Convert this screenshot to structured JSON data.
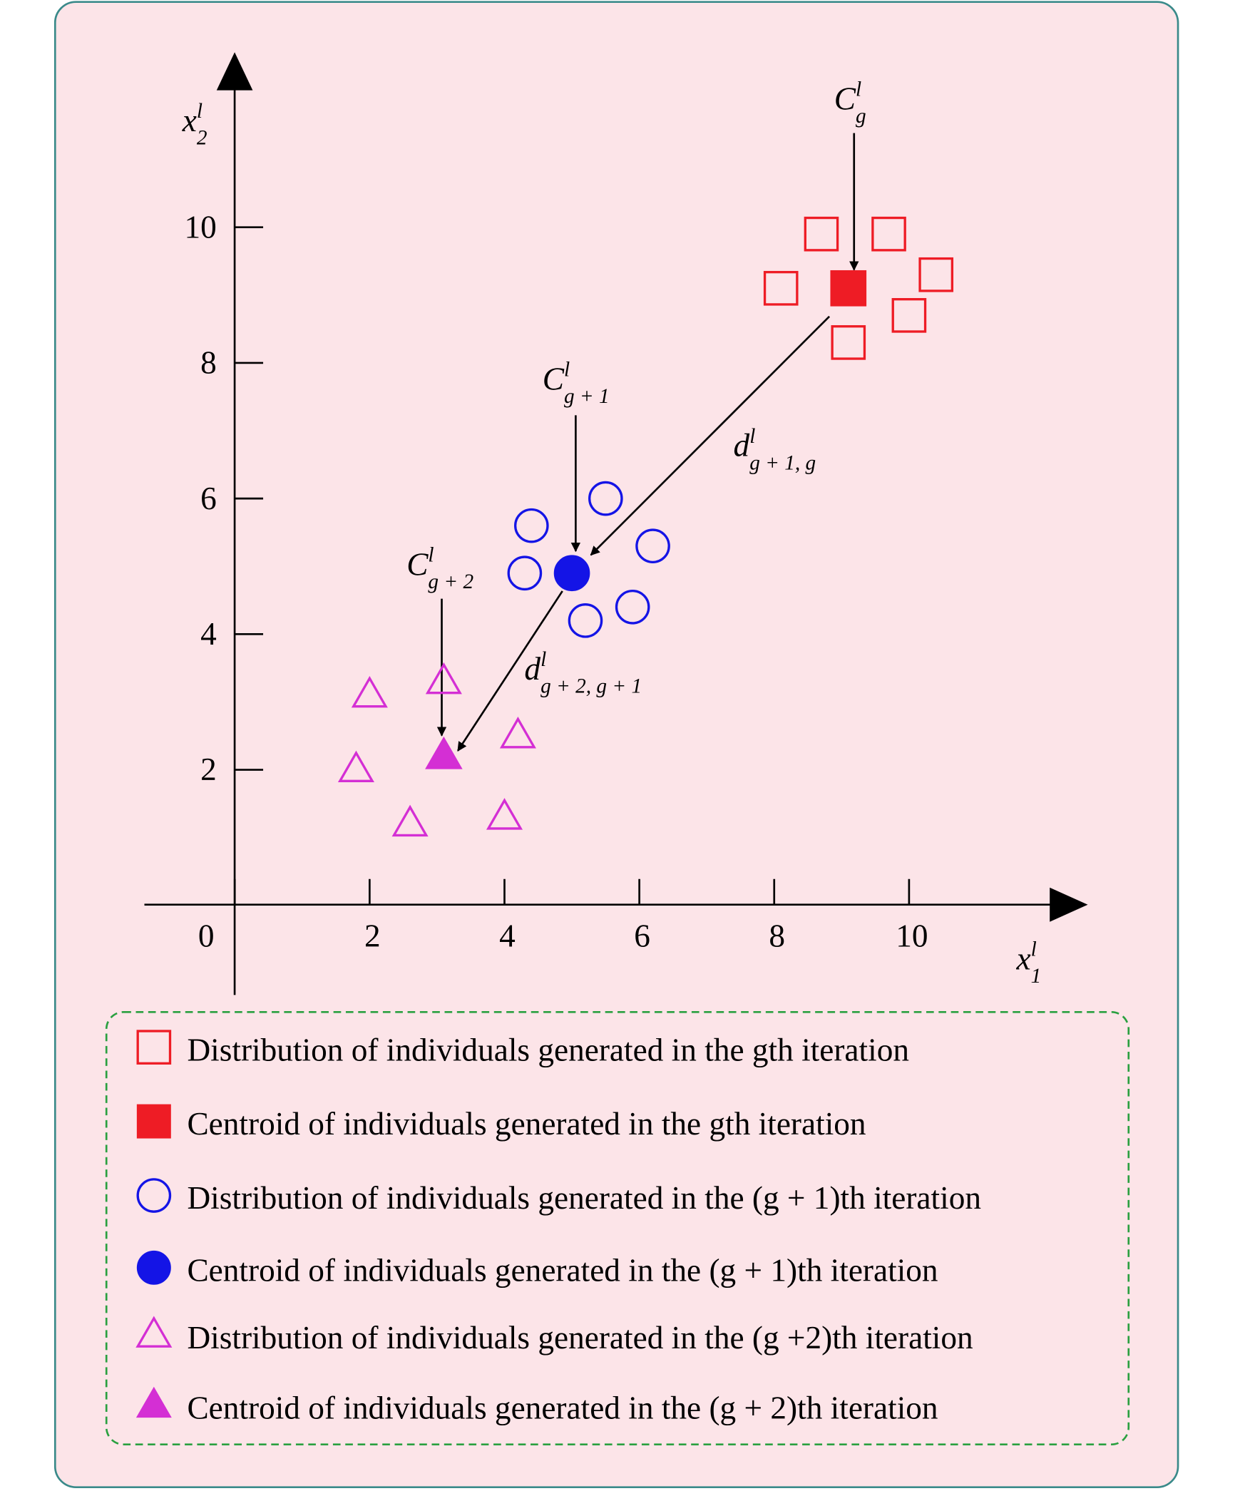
{
  "chart_data": {
    "type": "scatter",
    "xlim": [
      -1.34,
      12.65
    ],
    "ylim": [
      -1.32,
      12.58
    ],
    "xticks": [
      0,
      2,
      4,
      6,
      8,
      10
    ],
    "yticks": [
      2,
      4,
      6,
      8,
      10
    ],
    "x_label": {
      "base": "x",
      "sup": "l",
      "sub": "1"
    },
    "y_label": {
      "base": "x",
      "sup": "l",
      "sub": "2"
    },
    "series": [
      {
        "name": "Distribution of individuals generated in the gth iteration",
        "color": "#ee1c25",
        "marker": "square",
        "filled": false,
        "x": [
          8.7,
          9.7,
          8.1,
          10.4,
          10.0,
          9.1
        ],
        "values": [
          9.9,
          9.9,
          9.1,
          9.3,
          8.7,
          8.3
        ]
      },
      {
        "name": "Centroid of individuals generated in the gth iteration",
        "color": "#ee1c25",
        "marker": "square",
        "filled": true,
        "x": [
          9.1
        ],
        "values": [
          9.1
        ]
      },
      {
        "name": "Distribution of individuals generated in the (g + 1)th iteration",
        "color": "#1414e6",
        "marker": "circle",
        "filled": false,
        "x": [
          4.4,
          5.5,
          4.3,
          6.2,
          5.2,
          5.9
        ],
        "values": [
          5.6,
          6.0,
          4.9,
          5.3,
          4.2,
          4.4
        ]
      },
      {
        "name": "Centroid of individuals generated in the (g + 1)th iteration",
        "color": "#1414e6",
        "marker": "circle",
        "filled": true,
        "x": [
          5.0
        ],
        "values": [
          4.9
        ]
      },
      {
        "name": "Distribution of individuals generated in the (g +2)th iteration",
        "color": "#d42fd4",
        "marker": "triangle",
        "filled": false,
        "x": [
          2.0,
          3.1,
          1.8,
          4.2,
          2.6,
          4.0
        ],
        "values": [
          3.1,
          3.3,
          2.0,
          2.5,
          1.2,
          1.3
        ]
      },
      {
        "name": "Centroid of individuals generated in the (g + 2)th iteration",
        "color": "#d42fd4",
        "marker": "triangle",
        "filled": true,
        "x": [
          3.1
        ],
        "values": [
          2.2
        ]
      }
    ],
    "annotations": [
      {
        "base": "C",
        "sup": "l",
        "sub": "g"
      },
      {
        "base": "C",
        "sup": "l",
        "sub": "g + 1"
      },
      {
        "base": "C",
        "sup": "l",
        "sub": "g + 2"
      },
      {
        "base": "d",
        "sup": "l",
        "sub": "g + 1, g"
      },
      {
        "base": "d",
        "sup": "l",
        "sub": "g + 2, g + 1"
      }
    ]
  }
}
